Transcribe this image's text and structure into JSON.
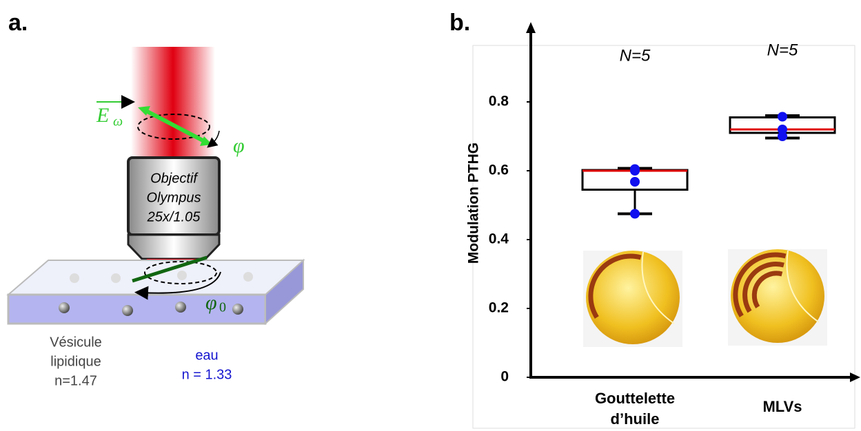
{
  "panel_a": {
    "label": "a.",
    "field_symbol": "E",
    "field_subscript": "ω",
    "angle_symbol": "φ",
    "angle0_symbol": "φ",
    "angle0_subscript": "0",
    "objective": [
      "Objectif",
      "Olympus",
      "25x/1.05"
    ],
    "vesicle": [
      "Vésicule",
      "lipidique",
      "n=1.47"
    ],
    "water": [
      "eau",
      "n = 1.33"
    ]
  },
  "chart_data": {
    "type": "box",
    "label": "b.",
    "y_label": "Modulation PTHG",
    "categories": [
      "Gouttelette d’huile",
      "MLVs"
    ],
    "annotations": [
      "N=5",
      "N=5"
    ],
    "boxes": [
      {
        "whislo": 0.475,
        "q1": 0.545,
        "med": 0.6,
        "q3": 0.602,
        "whishi": 0.607,
        "points": [
          0.605,
          0.6,
          0.568,
          0.475
        ]
      },
      {
        "whislo": 0.695,
        "q1": 0.71,
        "med": 0.72,
        "q3": 0.755,
        "whishi": 0.76,
        "points": [
          0.757,
          0.72,
          0.7
        ]
      }
    ],
    "box_color": "#000000",
    "median_color": "#e00000",
    "point_color": "#1010f0",
    "ylim": [
      0,
      1
    ],
    "yticks": [
      0,
      0.2,
      0.4,
      0.6,
      0.8
    ]
  }
}
